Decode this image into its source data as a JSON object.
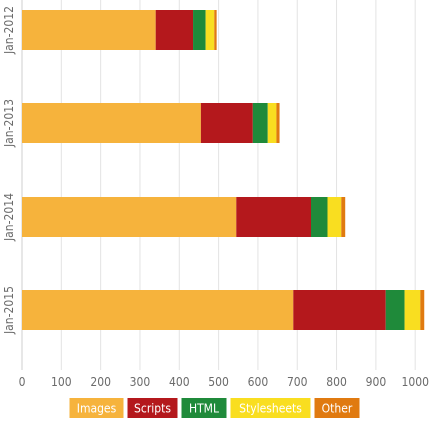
{
  "chart_data": {
    "type": "bar",
    "orientation": "horizontal",
    "stacked": true,
    "categories": [
      "Jan-2012",
      "Jan-2013",
      "Jan-2014",
      "Jan-2015"
    ],
    "series": [
      {
        "name": "Images",
        "color": "#f6b33c",
        "values": [
          340,
          455,
          545,
          690
        ]
      },
      {
        "name": "Scripts",
        "color": "#b4181c",
        "values": [
          95,
          132,
          190,
          235
        ]
      },
      {
        "name": "HTML",
        "color": "#1f8a3a",
        "values": [
          32,
          38,
          42,
          48
        ]
      },
      {
        "name": "Stylesheets",
        "color": "#f9de20",
        "values": [
          22,
          22,
          35,
          40
        ]
      },
      {
        "name": "Other",
        "color": "#e07a10",
        "values": [
          6,
          8,
          10,
          10
        ]
      }
    ],
    "xlim": [
      0,
      1030
    ],
    "xticks": [
      0,
      100,
      200,
      300,
      400,
      500,
      600,
      700,
      800,
      900,
      1000
    ],
    "grid": "vertical",
    "legend": "bottom"
  }
}
